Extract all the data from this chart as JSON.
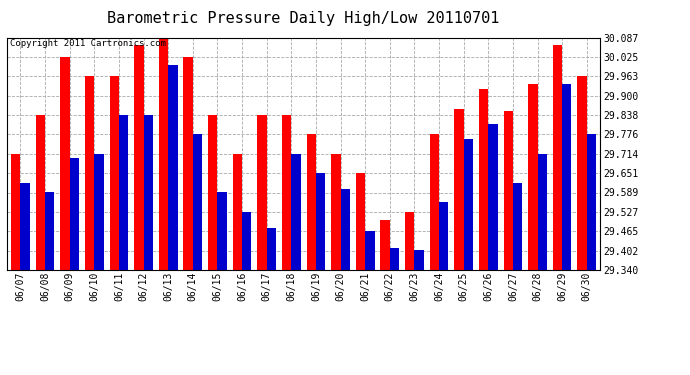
{
  "title": "Barometric Pressure Daily High/Low 20110701",
  "copyright_text": "Copyright 2011 Cartronics.com",
  "dates": [
    "06/07",
    "06/08",
    "06/09",
    "06/10",
    "06/11",
    "06/12",
    "06/13",
    "06/14",
    "06/15",
    "06/16",
    "06/17",
    "06/18",
    "06/19",
    "06/20",
    "06/21",
    "06/22",
    "06/23",
    "06/24",
    "06/25",
    "06/26",
    "06/27",
    "06/28",
    "06/29",
    "06/30"
  ],
  "highs": [
    29.714,
    29.838,
    30.025,
    29.963,
    29.963,
    30.063,
    30.087,
    30.025,
    29.838,
    29.714,
    29.838,
    29.838,
    29.776,
    29.714,
    29.651,
    29.5,
    29.527,
    29.776,
    29.858,
    29.92,
    29.852,
    29.938,
    30.063,
    29.963
  ],
  "lows": [
    29.62,
    29.59,
    29.7,
    29.714,
    29.838,
    29.838,
    30.0,
    29.776,
    29.59,
    29.527,
    29.476,
    29.714,
    29.651,
    29.6,
    29.465,
    29.41,
    29.405,
    29.56,
    29.76,
    29.81,
    29.621,
    29.714,
    29.938,
    29.776
  ],
  "ylim_min": 29.34,
  "ylim_max": 30.087,
  "yticks": [
    29.34,
    29.402,
    29.465,
    29.527,
    29.589,
    29.651,
    29.714,
    29.776,
    29.838,
    29.9,
    29.963,
    30.025,
    30.087
  ],
  "bar_color_high": "#ff0000",
  "bar_color_low": "#0000cc",
  "bg_color": "#ffffff",
  "grid_color": "#aaaaaa",
  "title_fontsize": 11,
  "tick_fontsize": 7,
  "copyright_fontsize": 6.5
}
